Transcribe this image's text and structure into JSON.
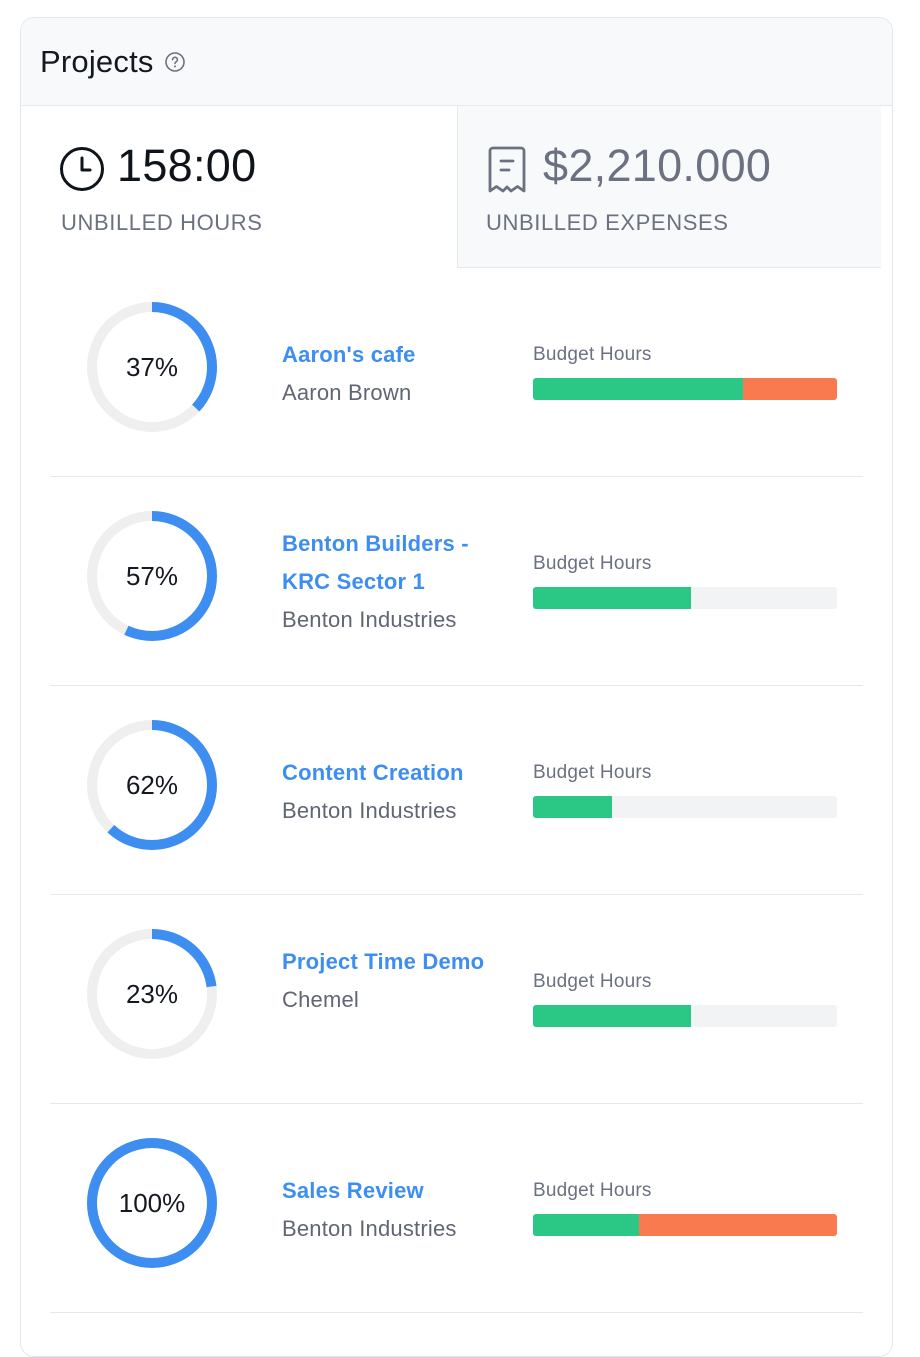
{
  "header": {
    "title": "Projects",
    "help_icon": "question-circle-icon"
  },
  "summary": {
    "hours": {
      "icon": "clock-icon",
      "value": "158:00",
      "label": "UNBILLED HOURS"
    },
    "expenses": {
      "icon": "receipt-icon",
      "value": "$2,210.000",
      "label": "UNBILLED EXPENSES"
    }
  },
  "colors": {
    "accent": "#3d8ef0",
    "ring_track": "#efefef",
    "bar_used": "#2bc784",
    "bar_over": "#fa7a4f",
    "bar_track": "#f2f3f5"
  },
  "projects": [
    {
      "name": "Aaron's cafe",
      "client": "Aaron Brown",
      "percent_label": "37%",
      "percent": 0.37,
      "budget_label": "Budget Hours",
      "budget_used": 0.69,
      "budget_over": 0.31
    },
    {
      "name": "Benton Builders - KRC Sector 1",
      "client": "Benton Industries",
      "percent_label": "57%",
      "percent": 0.57,
      "budget_label": "Budget Hours",
      "budget_used": 0.52,
      "budget_over": 0
    },
    {
      "name": "Content Creation",
      "client": "Benton Industries",
      "percent_label": "62%",
      "percent": 0.62,
      "budget_label": "Budget Hours",
      "budget_used": 0.26,
      "budget_over": 0
    },
    {
      "name": "Project Time Demo",
      "client": "Chemel",
      "percent_label": "23%",
      "percent": 0.23,
      "budget_label": "Budget Hours",
      "budget_used": 0.52,
      "budget_over": 0
    },
    {
      "name": "Sales Review",
      "client": "Benton Industries",
      "percent_label": "100%",
      "percent": 1.0,
      "budget_label": "Budget Hours",
      "budget_used": 0.35,
      "budget_over": 0.65
    }
  ]
}
